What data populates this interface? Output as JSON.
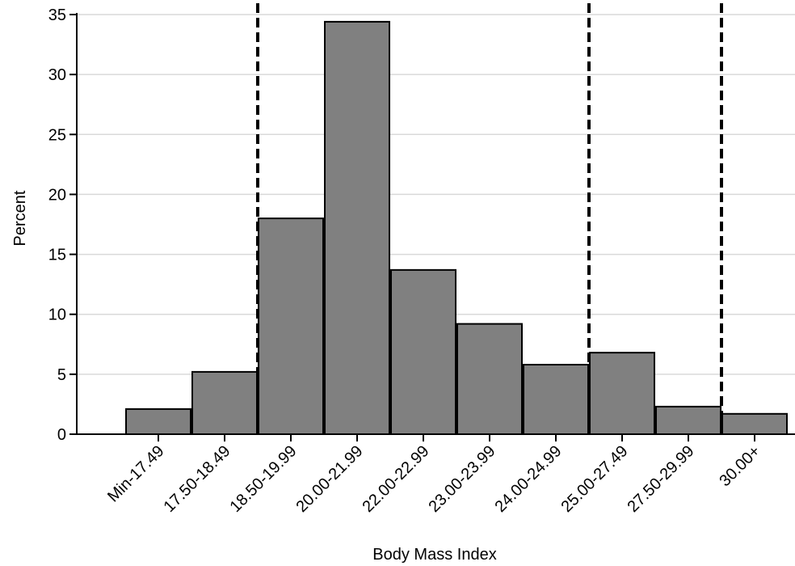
{
  "chart_data": {
    "type": "bar",
    "title": "",
    "xlabel": "Body Mass Index",
    "ylabel": "Percent",
    "categories": [
      "Min-17.49",
      "17.50-18.49",
      "18.50-19.99",
      "20.00-21.99",
      "22.00-22.99",
      "23.00-23.99",
      "24.00-24.99",
      "25.00-27.49",
      "27.50-29.99",
      "30.00+"
    ],
    "values": [
      2.1,
      5.2,
      18.0,
      34.4,
      13.7,
      9.2,
      5.8,
      6.8,
      2.3,
      1.7
    ],
    "ylim": [
      0,
      35
    ],
    "yticks": [
      0,
      5,
      10,
      15,
      20,
      25,
      30,
      35
    ],
    "reference_lines_between_categories": [
      [
        "17.50-18.49",
        "18.50-19.99"
      ],
      [
        "24.00-24.99",
        "25.00-27.49"
      ],
      [
        "27.50-29.99",
        "30.00+"
      ]
    ],
    "grid": "horizontal",
    "legend": "none",
    "colors": {
      "bar_fill": "#808080",
      "bar_stroke": "#000000",
      "grid": "#d9d9d9",
      "reference_line": "#000000"
    }
  }
}
